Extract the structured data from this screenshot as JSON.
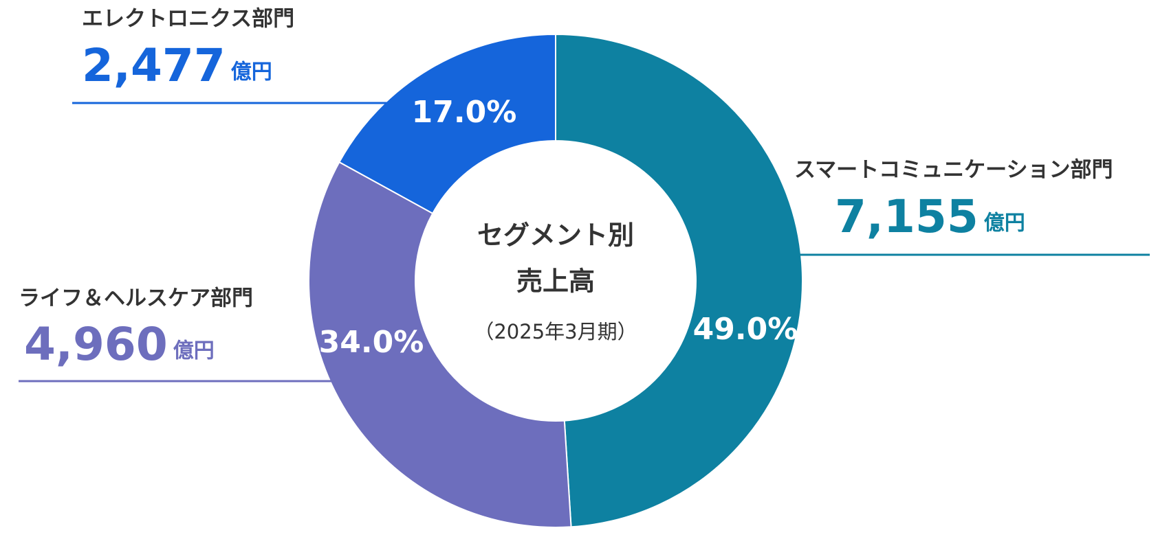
{
  "chart_data": {
    "type": "donut",
    "center_text": [
      "セグメント別",
      "売上高",
      "（2025年3月期）"
    ],
    "categories": [
      "スマートコミュニケーション部門",
      "ライフ＆ヘルスケア部門",
      "エレクトロニクス部門"
    ],
    "values": [
      49,
      34,
      17
    ],
    "value_labels": [
      "49.0%",
      "34.0%",
      "17.0%"
    ],
    "colors": [
      "#0e81a1",
      "#6d6ebd",
      "#1565db"
    ],
    "amounts": [
      {
        "value": 7155,
        "label": "7,155"
      },
      {
        "value": 4960,
        "label": "4,960"
      },
      {
        "value": 2477,
        "label": "2,477"
      }
    ],
    "amount_unit": "億円"
  }
}
